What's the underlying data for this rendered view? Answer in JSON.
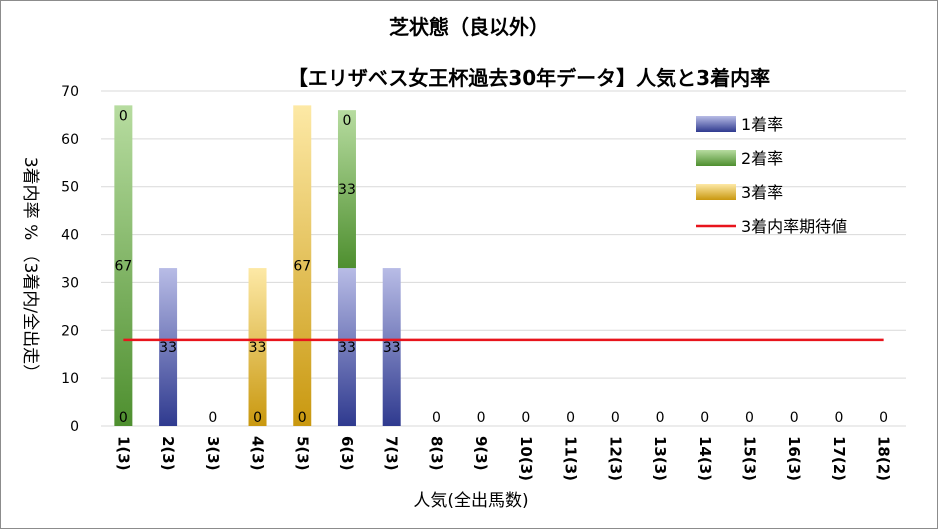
{
  "chart_data": {
    "type": "bar",
    "title": "芝状態（良以外）",
    "subtitle": "【エリザベス女王杯過去30年データ】人気と3着内率",
    "xlabel": "人気(全出馬数)",
    "ylabel": "3着内率 % （3着内/全出走）",
    "ylim": [
      0,
      70
    ],
    "yticks": [
      0,
      10,
      20,
      30,
      40,
      50,
      60,
      70
    ],
    "grid": true,
    "legend_position": "right",
    "categories": [
      "1(3)",
      "2(3)",
      "3(3)",
      "4(3)",
      "5(3)",
      "6(3)",
      "7(3)",
      "8(3)",
      "9(3)",
      "10(3)",
      "11(3)",
      "12(3)",
      "13(3)",
      "14(3)",
      "15(3)",
      "16(3)",
      "17(2)",
      "18(2)"
    ],
    "series": [
      {
        "name": "1着率",
        "color": "#2f3a8f",
        "values": [
          0,
          33,
          0,
          0,
          0,
          33,
          33,
          0,
          0,
          0,
          0,
          0,
          0,
          0,
          0,
          0,
          0,
          0
        ]
      },
      {
        "name": "2着率",
        "color": "#4e8f2f",
        "values": [
          67,
          0,
          0,
          0,
          0,
          33,
          0,
          0,
          0,
          0,
          0,
          0,
          0,
          0,
          0,
          0,
          0,
          0
        ]
      },
      {
        "name": "3着率",
        "color": "#c9980f",
        "values": [
          0,
          0,
          0,
          33,
          67,
          0,
          0,
          0,
          0,
          0,
          0,
          0,
          0,
          0,
          0,
          0,
          0,
          0
        ]
      }
    ],
    "data_labels": [
      [
        "0",
        "67",
        "0"
      ],
      [
        "33",
        "",
        ""
      ],
      [
        "0",
        "",
        ""
      ],
      [
        "",
        "0",
        "33"
      ],
      [
        "",
        "0",
        "67"
      ],
      [
        "33",
        "33",
        "0"
      ],
      [
        "33",
        "",
        ""
      ],
      [
        "0",
        "",
        ""
      ],
      [
        "0",
        "",
        ""
      ],
      [
        "0",
        "",
        ""
      ],
      [
        "0",
        "",
        ""
      ],
      [
        "0",
        "",
        ""
      ],
      [
        "0",
        "",
        ""
      ],
      [
        "0",
        "",
        ""
      ],
      [
        "0",
        "",
        ""
      ],
      [
        "0",
        "",
        ""
      ],
      [
        "0",
        "",
        ""
      ],
      [
        "0",
        "",
        ""
      ]
    ],
    "reference_line": {
      "name": "3着内率期待値",
      "value": 18,
      "color": "#e8141c"
    }
  }
}
